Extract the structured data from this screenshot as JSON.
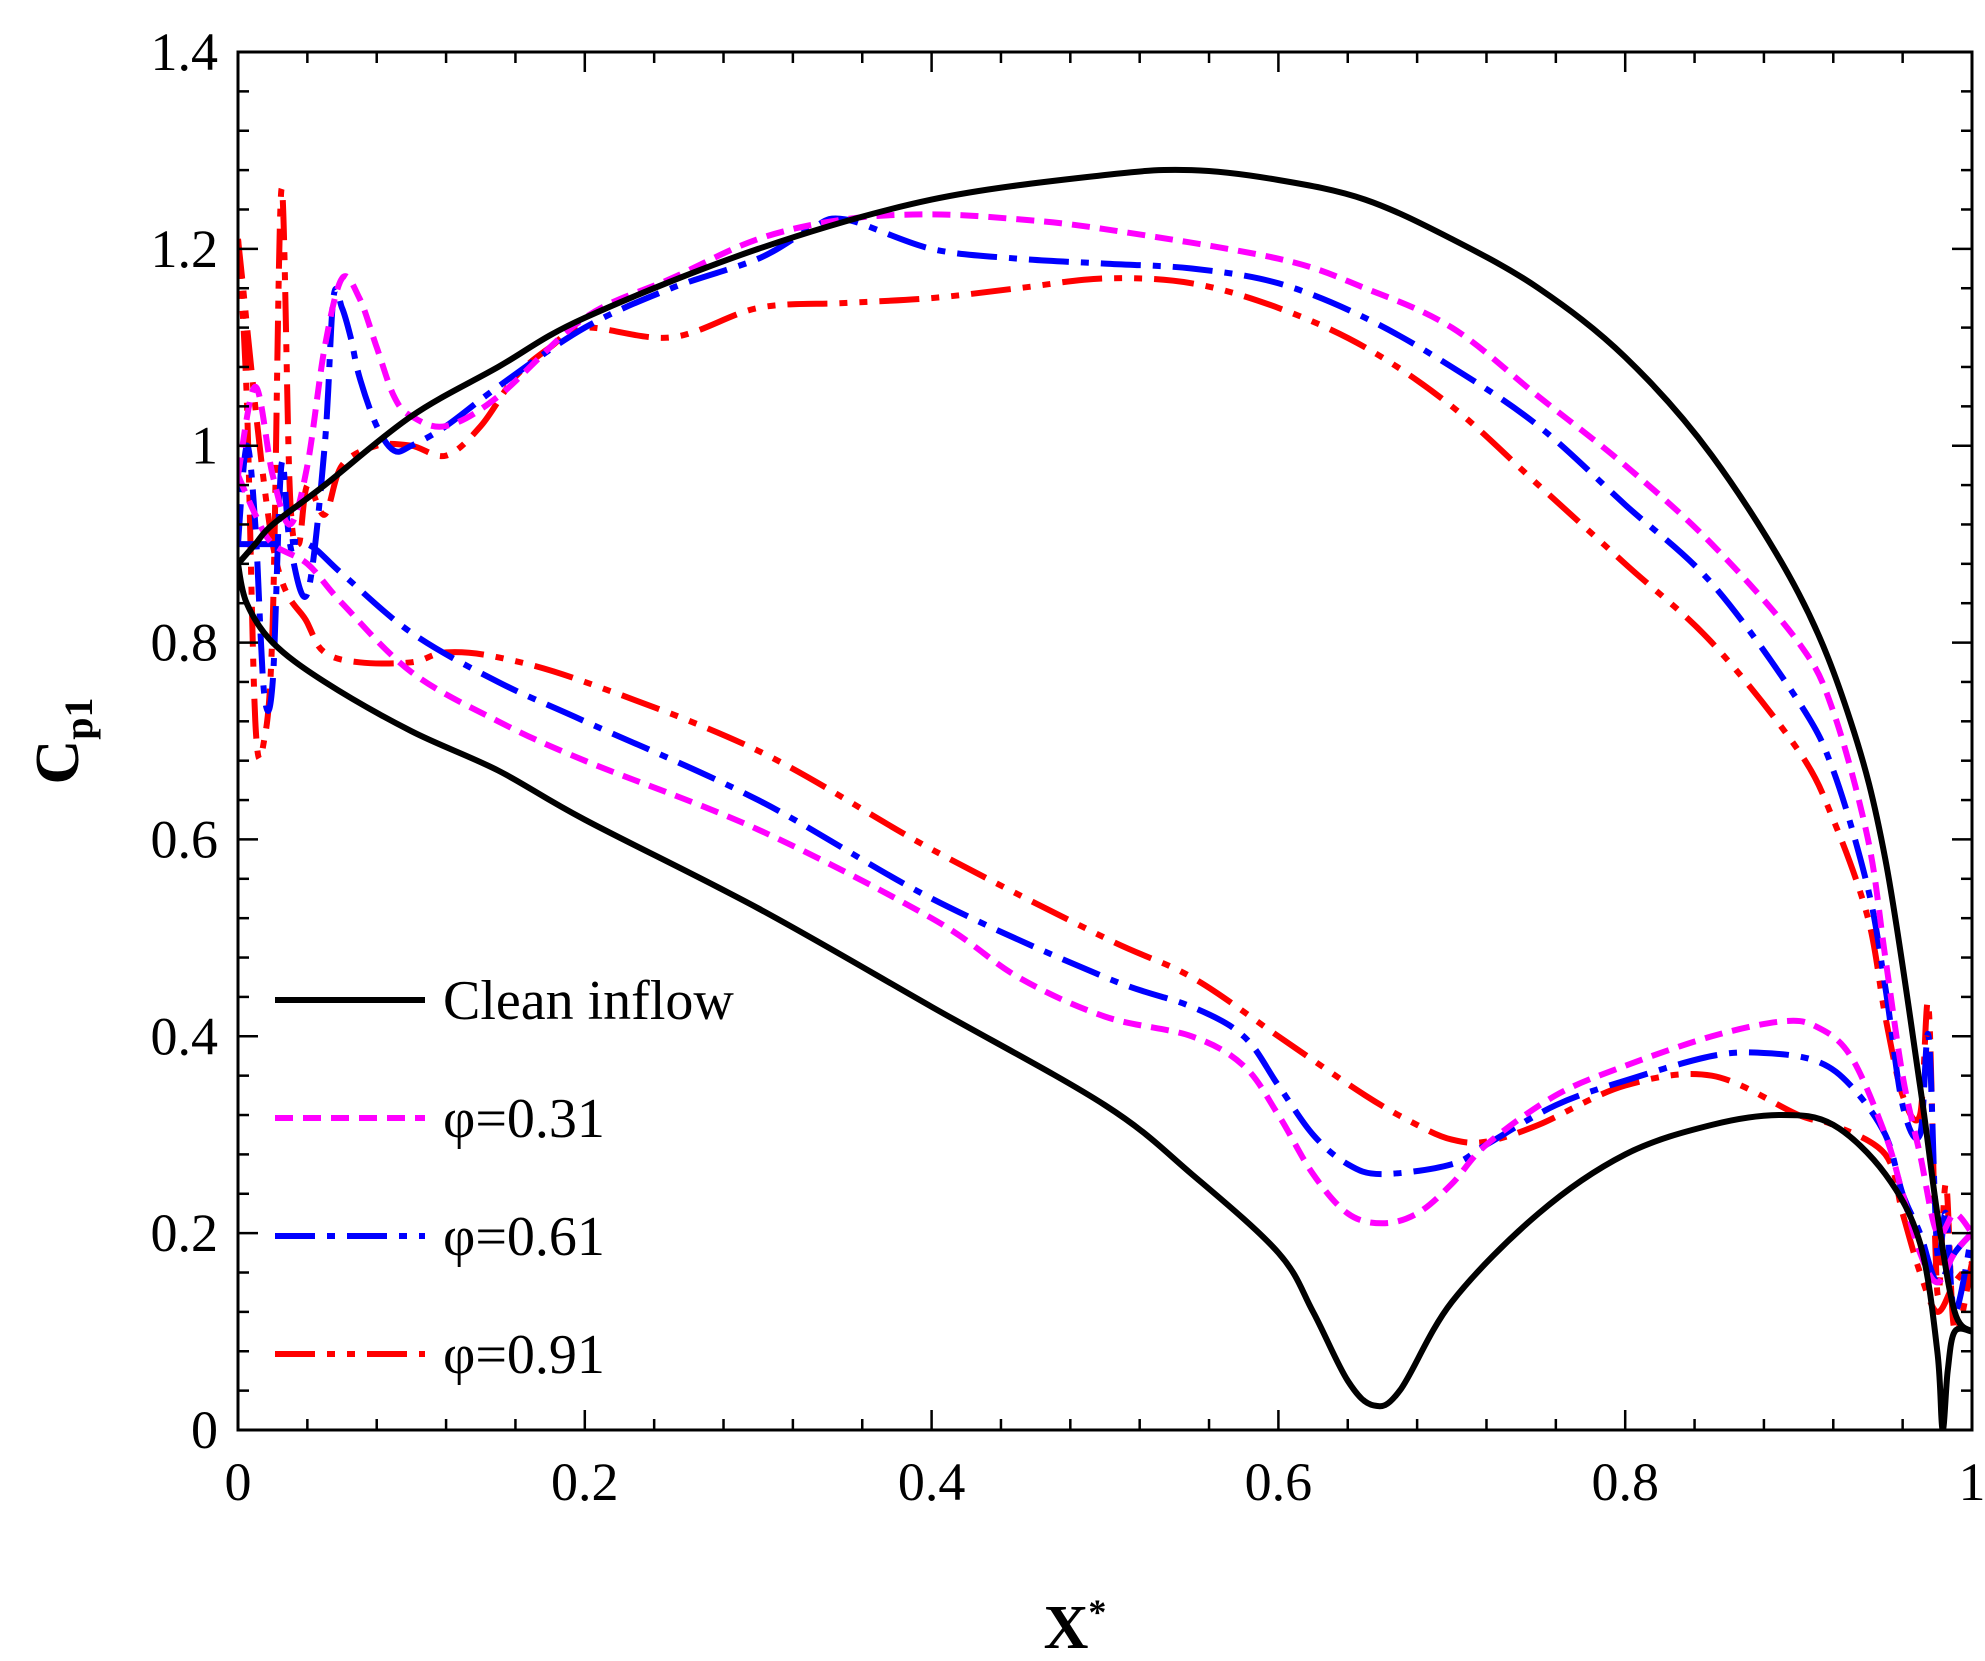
{
  "chart_data": {
    "type": "line",
    "title": "",
    "xlabel": "X",
    "xlabel_sup": "*",
    "ylabel": "C",
    "ylabel_sub": "p1",
    "xlim": [
      0,
      1
    ],
    "ylim": [
      0,
      1.4
    ],
    "x_ticks": [
      0,
      0.2,
      0.4,
      0.6,
      0.8,
      1
    ],
    "x_tick_labels": [
      "0",
      "0.2",
      "0.4",
      "0.6",
      "0.8",
      "1"
    ],
    "y_ticks": [
      0,
      0.2,
      0.4,
      0.6,
      0.8,
      1.0,
      1.2,
      1.4
    ],
    "y_tick_labels": [
      "0",
      "0.2",
      "0.4",
      "0.6",
      "0.8",
      "1",
      "1.2",
      "1.4"
    ],
    "x_minor_step": 0.04,
    "y_minor_step": 0.04,
    "grid": false,
    "legend_position": "bottom-left",
    "series": [
      {
        "name": "Clean inflow",
        "color": "#000000",
        "dash": "solid",
        "upper": [
          [
            0,
            0.88
          ],
          [
            0.01,
            0.9
          ],
          [
            0.02,
            0.92
          ],
          [
            0.05,
            0.96
          ],
          [
            0.1,
            1.03
          ],
          [
            0.15,
            1.08
          ],
          [
            0.2,
            1.13
          ],
          [
            0.3,
            1.2
          ],
          [
            0.4,
            1.25
          ],
          [
            0.5,
            1.275
          ],
          [
            0.55,
            1.28
          ],
          [
            0.6,
            1.27
          ],
          [
            0.65,
            1.25
          ],
          [
            0.7,
            1.21
          ],
          [
            0.75,
            1.16
          ],
          [
            0.8,
            1.09
          ],
          [
            0.85,
            0.99
          ],
          [
            0.9,
            0.85
          ],
          [
            0.93,
            0.72
          ],
          [
            0.95,
            0.58
          ],
          [
            0.97,
            0.35
          ],
          [
            0.98,
            0.22
          ],
          [
            0.99,
            0.12
          ],
          [
            1.0,
            0.1
          ]
        ],
        "lower": [
          [
            0,
            0.88
          ],
          [
            0.005,
            0.84
          ],
          [
            0.02,
            0.8
          ],
          [
            0.05,
            0.76
          ],
          [
            0.1,
            0.71
          ],
          [
            0.15,
            0.67
          ],
          [
            0.2,
            0.62
          ],
          [
            0.3,
            0.53
          ],
          [
            0.4,
            0.43
          ],
          [
            0.5,
            0.33
          ],
          [
            0.55,
            0.26
          ],
          [
            0.6,
            0.18
          ],
          [
            0.62,
            0.12
          ],
          [
            0.64,
            0.05
          ],
          [
            0.655,
            0.025
          ],
          [
            0.67,
            0.04
          ],
          [
            0.7,
            0.13
          ],
          [
            0.75,
            0.22
          ],
          [
            0.8,
            0.28
          ],
          [
            0.85,
            0.31
          ],
          [
            0.89,
            0.32
          ],
          [
            0.92,
            0.31
          ],
          [
            0.95,
            0.26
          ],
          [
            0.97,
            0.19
          ],
          [
            0.98,
            0.08
          ],
          [
            0.983,
            0.0
          ],
          [
            0.986,
            0.06
          ],
          [
            0.99,
            0.1
          ],
          [
            1.0,
            0.1
          ]
        ]
      },
      {
        "name": "φ=0.31",
        "color": "#ff00ff",
        "dash": "dash",
        "upper": [
          [
            0,
            0.97
          ],
          [
            0.01,
            1.06
          ],
          [
            0.02,
            0.97
          ],
          [
            0.03,
            0.92
          ],
          [
            0.04,
            0.98
          ],
          [
            0.05,
            1.1
          ],
          [
            0.06,
            1.17
          ],
          [
            0.07,
            1.15
          ],
          [
            0.08,
            1.1
          ],
          [
            0.09,
            1.05
          ],
          [
            0.1,
            1.03
          ],
          [
            0.12,
            1.02
          ],
          [
            0.15,
            1.05
          ],
          [
            0.2,
            1.13
          ],
          [
            0.25,
            1.17
          ],
          [
            0.3,
            1.21
          ],
          [
            0.35,
            1.23
          ],
          [
            0.4,
            1.235
          ],
          [
            0.45,
            1.23
          ],
          [
            0.5,
            1.22
          ],
          [
            0.6,
            1.19
          ],
          [
            0.65,
            1.16
          ],
          [
            0.7,
            1.12
          ],
          [
            0.75,
            1.05
          ],
          [
            0.8,
            0.98
          ],
          [
            0.85,
            0.9
          ],
          [
            0.9,
            0.8
          ],
          [
            0.92,
            0.73
          ],
          [
            0.94,
            0.6
          ],
          [
            0.95,
            0.48
          ],
          [
            0.96,
            0.36
          ],
          [
            0.97,
            0.28
          ],
          [
            0.98,
            0.2
          ],
          [
            0.99,
            0.22
          ],
          [
            1.0,
            0.2
          ]
        ],
        "lower": [
          [
            0,
            0.97
          ],
          [
            0.01,
            0.93
          ],
          [
            0.02,
            0.9
          ],
          [
            0.04,
            0.88
          ],
          [
            0.06,
            0.84
          ],
          [
            0.1,
            0.77
          ],
          [
            0.15,
            0.72
          ],
          [
            0.2,
            0.68
          ],
          [
            0.3,
            0.61
          ],
          [
            0.4,
            0.52
          ],
          [
            0.45,
            0.46
          ],
          [
            0.5,
            0.42
          ],
          [
            0.55,
            0.4
          ],
          [
            0.58,
            0.37
          ],
          [
            0.6,
            0.32
          ],
          [
            0.62,
            0.26
          ],
          [
            0.64,
            0.22
          ],
          [
            0.66,
            0.21
          ],
          [
            0.68,
            0.22
          ],
          [
            0.7,
            0.25
          ],
          [
            0.72,
            0.29
          ],
          [
            0.76,
            0.34
          ],
          [
            0.8,
            0.37
          ],
          [
            0.85,
            0.4
          ],
          [
            0.89,
            0.415
          ],
          [
            0.91,
            0.41
          ],
          [
            0.93,
            0.38
          ],
          [
            0.95,
            0.3
          ],
          [
            0.96,
            0.24
          ],
          [
            0.97,
            0.18
          ],
          [
            0.98,
            0.15
          ],
          [
            0.99,
            0.18
          ],
          [
            1.0,
            0.2
          ]
        ]
      },
      {
        "name": "φ=0.61",
        "color": "#0000ff",
        "dash": "dashdot",
        "upper": [
          [
            0,
            0.9
          ],
          [
            0.005,
            1.0
          ],
          [
            0.01,
            0.92
          ],
          [
            0.015,
            0.75
          ],
          [
            0.02,
            0.76
          ],
          [
            0.025,
            0.98
          ],
          [
            0.03,
            0.9
          ],
          [
            0.04,
            0.85
          ],
          [
            0.05,
            1.0
          ],
          [
            0.055,
            1.15
          ],
          [
            0.06,
            1.14
          ],
          [
            0.065,
            1.11
          ],
          [
            0.07,
            1.07
          ],
          [
            0.08,
            1.02
          ],
          [
            0.09,
            0.995
          ],
          [
            0.1,
            1.0
          ],
          [
            0.12,
            1.02
          ],
          [
            0.15,
            1.06
          ],
          [
            0.2,
            1.12
          ],
          [
            0.25,
            1.16
          ],
          [
            0.3,
            1.19
          ],
          [
            0.33,
            1.22
          ],
          [
            0.35,
            1.23
          ],
          [
            0.4,
            1.2
          ],
          [
            0.45,
            1.19
          ],
          [
            0.5,
            1.185
          ],
          [
            0.55,
            1.18
          ],
          [
            0.6,
            1.165
          ],
          [
            0.65,
            1.13
          ],
          [
            0.7,
            1.08
          ],
          [
            0.75,
            1.02
          ],
          [
            0.8,
            0.94
          ],
          [
            0.85,
            0.86
          ],
          [
            0.9,
            0.74
          ],
          [
            0.92,
            0.67
          ],
          [
            0.94,
            0.55
          ],
          [
            0.95,
            0.45
          ],
          [
            0.96,
            0.33
          ],
          [
            0.97,
            0.3
          ],
          [
            0.975,
            0.4
          ],
          [
            0.98,
            0.18
          ],
          [
            0.985,
            0.22
          ],
          [
            0.99,
            0.12
          ],
          [
            1.0,
            0.2
          ]
        ],
        "lower": [
          [
            0,
            0.9
          ],
          [
            0.01,
            0.9
          ],
          [
            0.02,
            0.9
          ],
          [
            0.04,
            0.9
          ],
          [
            0.06,
            0.87
          ],
          [
            0.1,
            0.81
          ],
          [
            0.15,
            0.76
          ],
          [
            0.2,
            0.72
          ],
          [
            0.3,
            0.64
          ],
          [
            0.4,
            0.54
          ],
          [
            0.5,
            0.46
          ],
          [
            0.55,
            0.43
          ],
          [
            0.58,
            0.4
          ],
          [
            0.6,
            0.35
          ],
          [
            0.62,
            0.3
          ],
          [
            0.64,
            0.27
          ],
          [
            0.66,
            0.26
          ],
          [
            0.7,
            0.27
          ],
          [
            0.72,
            0.29
          ],
          [
            0.76,
            0.33
          ],
          [
            0.8,
            0.355
          ],
          [
            0.85,
            0.38
          ],
          [
            0.88,
            0.383
          ],
          [
            0.91,
            0.375
          ],
          [
            0.93,
            0.35
          ],
          [
            0.95,
            0.3
          ],
          [
            0.96,
            0.24
          ],
          [
            0.97,
            0.2
          ],
          [
            0.98,
            0.15
          ],
          [
            0.99,
            0.18
          ],
          [
            1.0,
            0.2
          ]
        ]
      },
      {
        "name": "φ=0.91",
        "color": "#ff0000",
        "dash": "dashdotdot",
        "upper": [
          [
            0,
            1.21
          ],
          [
            0.005,
            1.05
          ],
          [
            0.01,
            0.72
          ],
          [
            0.015,
            0.7
          ],
          [
            0.02,
            0.82
          ],
          [
            0.025,
            1.26
          ],
          [
            0.03,
            0.95
          ],
          [
            0.035,
            0.9
          ],
          [
            0.04,
            0.96
          ],
          [
            0.05,
            0.93
          ],
          [
            0.06,
            0.98
          ],
          [
            0.08,
            1.0
          ],
          [
            0.1,
            1.0
          ],
          [
            0.12,
            0.99
          ],
          [
            0.14,
            1.02
          ],
          [
            0.16,
            1.07
          ],
          [
            0.18,
            1.1
          ],
          [
            0.2,
            1.12
          ],
          [
            0.25,
            1.11
          ],
          [
            0.3,
            1.14
          ],
          [
            0.35,
            1.145
          ],
          [
            0.4,
            1.15
          ],
          [
            0.45,
            1.16
          ],
          [
            0.5,
            1.17
          ],
          [
            0.55,
            1.165
          ],
          [
            0.6,
            1.14
          ],
          [
            0.65,
            1.1
          ],
          [
            0.7,
            1.04
          ],
          [
            0.75,
            0.96
          ],
          [
            0.8,
            0.88
          ],
          [
            0.85,
            0.8
          ],
          [
            0.9,
            0.69
          ],
          [
            0.92,
            0.62
          ],
          [
            0.94,
            0.52
          ],
          [
            0.95,
            0.42
          ],
          [
            0.96,
            0.34
          ],
          [
            0.97,
            0.32
          ],
          [
            0.975,
            0.43
          ],
          [
            0.98,
            0.14
          ],
          [
            0.985,
            0.25
          ],
          [
            0.99,
            0.1
          ],
          [
            1.0,
            0.17
          ]
        ],
        "lower": [
          [
            0,
            1.21
          ],
          [
            0.02,
            0.9
          ],
          [
            0.04,
            0.82
          ],
          [
            0.05,
            0.79
          ],
          [
            0.07,
            0.78
          ],
          [
            0.1,
            0.78
          ],
          [
            0.12,
            0.79
          ],
          [
            0.15,
            0.785
          ],
          [
            0.2,
            0.76
          ],
          [
            0.3,
            0.69
          ],
          [
            0.4,
            0.59
          ],
          [
            0.5,
            0.5
          ],
          [
            0.55,
            0.46
          ],
          [
            0.6,
            0.4
          ],
          [
            0.65,
            0.34
          ],
          [
            0.68,
            0.31
          ],
          [
            0.7,
            0.295
          ],
          [
            0.72,
            0.293
          ],
          [
            0.75,
            0.31
          ],
          [
            0.8,
            0.35
          ],
          [
            0.85,
            0.36
          ],
          [
            0.9,
            0.32
          ],
          [
            0.92,
            0.31
          ],
          [
            0.95,
            0.28
          ],
          [
            0.96,
            0.22
          ],
          [
            0.97,
            0.16
          ],
          [
            0.98,
            0.12
          ],
          [
            0.99,
            0.15
          ],
          [
            1.0,
            0.17
          ]
        ]
      }
    ]
  }
}
